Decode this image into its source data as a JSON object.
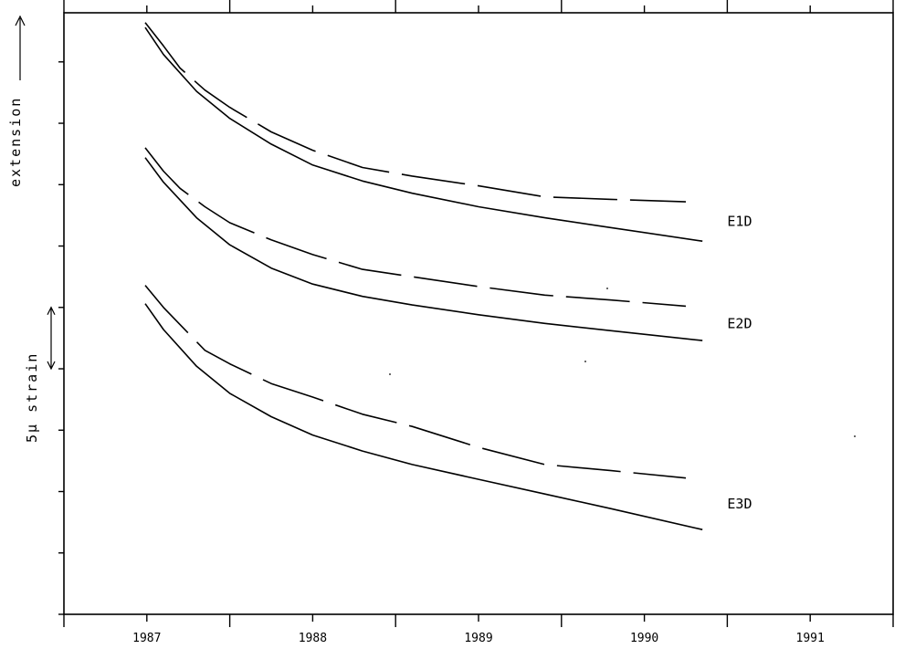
{
  "chart_data": {
    "type": "line",
    "xlabel": "",
    "ylabel": "extension",
    "scale_bar_label": "5µ strain",
    "scale_bar_value": 5,
    "xlim": [
      1986.5,
      1991.5
    ],
    "ylim": [
      0,
      49
    ],
    "x_ticks": [
      1987,
      1988,
      1989,
      1990,
      1991
    ],
    "x_tick_labels": [
      "1987",
      "1988",
      "1989",
      "1990",
      "1991"
    ],
    "series": [
      {
        "name": "E1D",
        "curves": [
          {
            "style": "dashed",
            "points": [
              [
                1986.99,
                48.2
              ],
              [
                1987.1,
                46.3
              ],
              [
                1987.2,
                44.5
              ],
              [
                1987.35,
                42.7
              ],
              [
                1987.5,
                41.3
              ],
              [
                1987.75,
                39.3
              ],
              [
                1988.0,
                37.8
              ],
              [
                1988.3,
                36.4
              ],
              [
                1988.6,
                35.7
              ],
              [
                1989.0,
                34.9
              ],
              [
                1989.4,
                34.0
              ],
              [
                1989.8,
                33.8
              ],
              [
                1990.25,
                33.6
              ]
            ]
          },
          {
            "style": "solid",
            "points": [
              [
                1986.99,
                47.8
              ],
              [
                1987.1,
                45.6
              ],
              [
                1987.3,
                42.6
              ],
              [
                1987.5,
                40.4
              ],
              [
                1987.75,
                38.3
              ],
              [
                1988.0,
                36.6
              ],
              [
                1988.3,
                35.3
              ],
              [
                1988.6,
                34.3
              ],
              [
                1989.0,
                33.2
              ],
              [
                1989.4,
                32.3
              ],
              [
                1989.8,
                31.5
              ],
              [
                1990.35,
                30.4
              ]
            ]
          }
        ]
      },
      {
        "name": "E2D",
        "curves": [
          {
            "style": "dashed",
            "points": [
              [
                1986.99,
                38.0
              ],
              [
                1987.1,
                36.1
              ],
              [
                1987.2,
                34.7
              ],
              [
                1987.35,
                33.2
              ],
              [
                1987.5,
                31.9
              ],
              [
                1987.75,
                30.5
              ],
              [
                1988.0,
                29.3
              ],
              [
                1988.3,
                28.1
              ],
              [
                1988.6,
                27.5
              ],
              [
                1989.0,
                26.7
              ],
              [
                1989.4,
                26.0
              ],
              [
                1989.8,
                25.6
              ],
              [
                1990.25,
                25.1
              ]
            ]
          },
          {
            "style": "solid",
            "points": [
              [
                1986.99,
                37.2
              ],
              [
                1987.1,
                35.2
              ],
              [
                1987.3,
                32.3
              ],
              [
                1987.5,
                30.1
              ],
              [
                1987.75,
                28.2
              ],
              [
                1988.0,
                26.9
              ],
              [
                1988.3,
                25.9
              ],
              [
                1988.6,
                25.2
              ],
              [
                1989.0,
                24.4
              ],
              [
                1989.4,
                23.7
              ],
              [
                1989.8,
                23.1
              ],
              [
                1990.35,
                22.3
              ]
            ]
          }
        ]
      },
      {
        "name": "E3D",
        "curves": [
          {
            "style": "dashed",
            "points": [
              [
                1986.99,
                26.8
              ],
              [
                1987.1,
                25.0
              ],
              [
                1987.2,
                23.6
              ],
              [
                1987.35,
                21.5
              ],
              [
                1987.5,
                20.4
              ],
              [
                1987.75,
                18.8
              ],
              [
                1988.0,
                17.7
              ],
              [
                1988.3,
                16.3
              ],
              [
                1988.6,
                15.3
              ],
              [
                1989.0,
                13.6
              ],
              [
                1989.4,
                12.2
              ],
              [
                1989.8,
                11.7
              ],
              [
                1990.25,
                11.1
              ]
            ]
          },
          {
            "style": "solid",
            "points": [
              [
                1986.99,
                25.3
              ],
              [
                1987.1,
                23.2
              ],
              [
                1987.3,
                20.2
              ],
              [
                1987.5,
                18.0
              ],
              [
                1987.75,
                16.1
              ],
              [
                1988.0,
                14.6
              ],
              [
                1988.3,
                13.3
              ],
              [
                1988.6,
                12.2
              ],
              [
                1989.0,
                11.0
              ],
              [
                1989.4,
                9.8
              ],
              [
                1989.8,
                8.6
              ],
              [
                1990.35,
                6.9
              ]
            ]
          }
        ]
      }
    ]
  }
}
